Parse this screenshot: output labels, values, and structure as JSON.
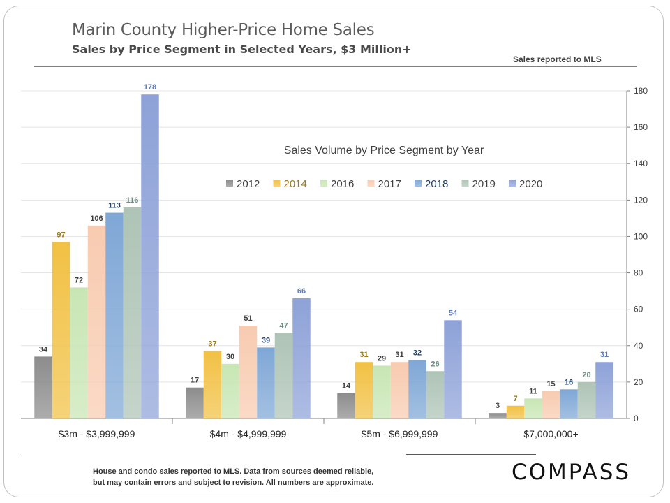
{
  "header": {
    "title": "Marin County Higher-Price Home Sales",
    "subtitle": "Sales by Price Segment in Selected Years, $3 Million+",
    "source_note": "Sales reported to MLS"
  },
  "footer": {
    "note_line1": "House and condo sales reported to MLS. Data from sources deemed reliable,",
    "note_line2": "but may contain errors and subject to revision.  All numbers are approximate.",
    "logo_text": "COMPASS"
  },
  "colors": {
    "2012": "#8c8c8c",
    "2014": "#f2c144",
    "2016": "#c8e6b4",
    "2017": "#f8cbb0",
    "2018": "#7fa7d6",
    "2019": "#aec4b6",
    "2020": "#8ea2d8"
  },
  "label_colors": {
    "2012": "#404040",
    "2014": "#9a7a1a",
    "2016": "#404040",
    "2017": "#404040",
    "2018": "#1f3d66",
    "2019": "#6b8c80",
    "2020": "#5b7bbf"
  },
  "chart_data": {
    "type": "bar",
    "title": "Sales Volume by Price Segment by Year",
    "xlabel": "",
    "ylabel": "",
    "ylim": [
      0,
      180
    ],
    "yticks": [
      0,
      20,
      40,
      60,
      80,
      100,
      120,
      140,
      160,
      180
    ],
    "grid": true,
    "legend_position": "top-center",
    "categories": [
      "$3m - $3,999,999",
      "$4m - $4,999,999",
      "$5m - $6,999,999",
      "$7,000,000+"
    ],
    "series": [
      {
        "name": "2012",
        "values": [
          34,
          17,
          14,
          3
        ]
      },
      {
        "name": "2014",
        "values": [
          97,
          37,
          31,
          7
        ]
      },
      {
        "name": "2016",
        "values": [
          72,
          30,
          29,
          11
        ]
      },
      {
        "name": "2017",
        "values": [
          106,
          51,
          31,
          15
        ]
      },
      {
        "name": "2018",
        "values": [
          113,
          39,
          32,
          16
        ]
      },
      {
        "name": "2019",
        "values": [
          116,
          47,
          26,
          20
        ]
      },
      {
        "name": "2020",
        "values": [
          178,
          66,
          54,
          31
        ]
      }
    ]
  }
}
